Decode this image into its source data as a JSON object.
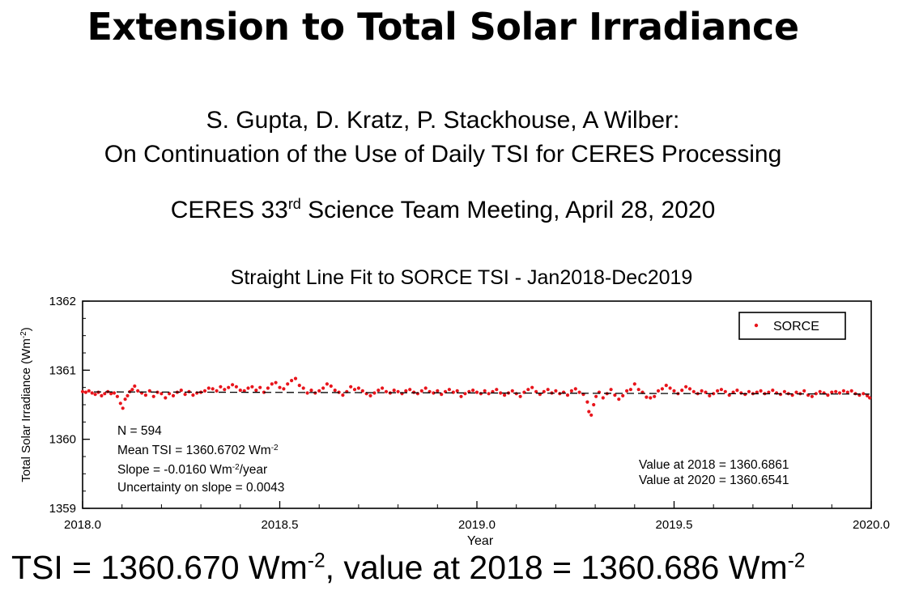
{
  "slide": {
    "title": "Extension to Total Solar Irradiance",
    "authors": "S. Gupta, D. Kratz, P. Stackhouse, A Wilber:",
    "talk_title": "On Continuation of the Use of Daily TSI for CERES Processing",
    "meeting_pre": "CERES 33",
    "meeting_sup": "rd",
    "meeting_post": " Science Team Meeting, April 28, 2020",
    "bottom_pre": "TSI = 1360.670 Wm",
    "bottom_sup1": "-2",
    "bottom_mid": ", value at 2018 = 1360.686 Wm",
    "bottom_sup2": "-2"
  },
  "chart_data": {
    "type": "scatter",
    "title": "Straight Line Fit to SORCE TSI - Jan2018-Dec2019",
    "xlabel": "Year",
    "ylabel": "Total Solar Irradiance (Wm-2)",
    "xlim": [
      2018.0,
      2020.0
    ],
    "ylim": [
      1359,
      1362
    ],
    "x_ticks": [
      "2018.0",
      "2018.5",
      "2019.0",
      "2019.5",
      "2020.0"
    ],
    "y_ticks": [
      "1359",
      "1360",
      "1361",
      "1362"
    ],
    "legend": {
      "label": "SORCE",
      "position": "top-right"
    },
    "colors": {
      "points": "#e8141b",
      "fit": "#000000"
    },
    "fit": {
      "style": "dashed",
      "intercept_2018": 1360.6861,
      "value_2020": 1360.6541
    },
    "stats": {
      "n": "N = 594",
      "mean_pre": "Mean TSI = 1360.6702 Wm",
      "mean_sup": "-2",
      "slope_pre": "Slope = -0.0160 Wm",
      "slope_sup": "-2",
      "slope_post": "/year",
      "uncertainty": "Uncertainty on slope = 0.0043",
      "v2018": "Value at 2018 = 1360.6861",
      "v2020": "Value at 2020 = 1360.6541"
    },
    "series": [
      {
        "name": "SORCE",
        "points": [
          [
            2018.0,
            1360.69
          ],
          [
            2018.008,
            1360.68
          ],
          [
            2018.016,
            1360.7
          ],
          [
            2018.024,
            1360.67
          ],
          [
            2018.032,
            1360.65
          ],
          [
            2018.04,
            1360.68
          ],
          [
            2018.048,
            1360.63
          ],
          [
            2018.056,
            1360.66
          ],
          [
            2018.064,
            1360.69
          ],
          [
            2018.072,
            1360.66
          ],
          [
            2018.08,
            1360.67
          ],
          [
            2018.088,
            1360.62
          ],
          [
            2018.096,
            1360.52
          ],
          [
            2018.102,
            1360.45
          ],
          [
            2018.108,
            1360.58
          ],
          [
            2018.114,
            1360.63
          ],
          [
            2018.12,
            1360.69
          ],
          [
            2018.126,
            1360.72
          ],
          [
            2018.132,
            1360.77
          ],
          [
            2018.14,
            1360.7
          ],
          [
            2018.15,
            1360.67
          ],
          [
            2018.16,
            1360.64
          ],
          [
            2018.17,
            1360.7
          ],
          [
            2018.18,
            1360.62
          ],
          [
            2018.19,
            1360.68
          ],
          [
            2018.2,
            1360.66
          ],
          [
            2018.21,
            1360.6
          ],
          [
            2018.22,
            1360.66
          ],
          [
            2018.23,
            1360.63
          ],
          [
            2018.24,
            1360.68
          ],
          [
            2018.25,
            1360.71
          ],
          [
            2018.26,
            1360.65
          ],
          [
            2018.27,
            1360.69
          ],
          [
            2018.28,
            1360.64
          ],
          [
            2018.29,
            1360.67
          ],
          [
            2018.3,
            1360.68
          ],
          [
            2018.31,
            1360.7
          ],
          [
            2018.32,
            1360.74
          ],
          [
            2018.33,
            1360.73
          ],
          [
            2018.34,
            1360.7
          ],
          [
            2018.35,
            1360.76
          ],
          [
            2018.36,
            1360.72
          ],
          [
            2018.37,
            1360.75
          ],
          [
            2018.38,
            1360.79
          ],
          [
            2018.39,
            1360.76
          ],
          [
            2018.4,
            1360.71
          ],
          [
            2018.41,
            1360.7
          ],
          [
            2018.42,
            1360.74
          ],
          [
            2018.43,
            1360.76
          ],
          [
            2018.44,
            1360.71
          ],
          [
            2018.45,
            1360.75
          ],
          [
            2018.46,
            1360.68
          ],
          [
            2018.47,
            1360.74
          ],
          [
            2018.48,
            1360.8
          ],
          [
            2018.49,
            1360.82
          ],
          [
            2018.5,
            1360.75
          ],
          [
            2018.51,
            1360.73
          ],
          [
            2018.52,
            1360.8
          ],
          [
            2018.53,
            1360.85
          ],
          [
            2018.54,
            1360.88
          ],
          [
            2018.55,
            1360.78
          ],
          [
            2018.56,
            1360.74
          ],
          [
            2018.57,
            1360.67
          ],
          [
            2018.58,
            1360.71
          ],
          [
            2018.59,
            1360.67
          ],
          [
            2018.6,
            1360.7
          ],
          [
            2018.61,
            1360.74
          ],
          [
            2018.62,
            1360.8
          ],
          [
            2018.63,
            1360.77
          ],
          [
            2018.64,
            1360.71
          ],
          [
            2018.65,
            1360.68
          ],
          [
            2018.66,
            1360.64
          ],
          [
            2018.67,
            1360.69
          ],
          [
            2018.68,
            1360.76
          ],
          [
            2018.69,
            1360.72
          ],
          [
            2018.7,
            1360.74
          ],
          [
            2018.71,
            1360.7
          ],
          [
            2018.72,
            1360.66
          ],
          [
            2018.73,
            1360.63
          ],
          [
            2018.74,
            1360.67
          ],
          [
            2018.75,
            1360.71
          ],
          [
            2018.76,
            1360.74
          ],
          [
            2018.77,
            1360.69
          ],
          [
            2018.78,
            1360.67
          ],
          [
            2018.79,
            1360.71
          ],
          [
            2018.8,
            1360.69
          ],
          [
            2018.81,
            1360.66
          ],
          [
            2018.82,
            1360.7
          ],
          [
            2018.83,
            1360.72
          ],
          [
            2018.84,
            1360.68
          ],
          [
            2018.85,
            1360.66
          ],
          [
            2018.86,
            1360.7
          ],
          [
            2018.87,
            1360.74
          ],
          [
            2018.88,
            1360.69
          ],
          [
            2018.89,
            1360.67
          ],
          [
            2018.9,
            1360.7
          ],
          [
            2018.91,
            1360.65
          ],
          [
            2018.92,
            1360.69
          ],
          [
            2018.93,
            1360.72
          ],
          [
            2018.94,
            1360.68
          ],
          [
            2018.95,
            1360.7
          ],
          [
            2018.96,
            1360.62
          ],
          [
            2018.97,
            1360.66
          ],
          [
            2018.98,
            1360.69
          ],
          [
            2018.99,
            1360.71
          ],
          [
            2019.0,
            1360.68
          ],
          [
            2019.01,
            1360.66
          ],
          [
            2019.02,
            1360.7
          ],
          [
            2019.03,
            1360.66
          ],
          [
            2019.04,
            1360.69
          ],
          [
            2019.05,
            1360.72
          ],
          [
            2019.06,
            1360.67
          ],
          [
            2019.07,
            1360.64
          ],
          [
            2019.08,
            1360.67
          ],
          [
            2019.09,
            1360.7
          ],
          [
            2019.1,
            1360.66
          ],
          [
            2019.11,
            1360.62
          ],
          [
            2019.12,
            1360.68
          ],
          [
            2019.13,
            1360.72
          ],
          [
            2019.14,
            1360.75
          ],
          [
            2019.15,
            1360.69
          ],
          [
            2019.16,
            1360.65
          ],
          [
            2019.17,
            1360.69
          ],
          [
            2019.18,
            1360.72
          ],
          [
            2019.19,
            1360.67
          ],
          [
            2019.2,
            1360.7
          ],
          [
            2019.21,
            1360.66
          ],
          [
            2019.22,
            1360.68
          ],
          [
            2019.23,
            1360.64
          ],
          [
            2019.24,
            1360.7
          ],
          [
            2019.25,
            1360.73
          ],
          [
            2019.26,
            1360.68
          ],
          [
            2019.27,
            1360.65
          ],
          [
            2019.28,
            1360.54
          ],
          [
            2019.284,
            1360.4
          ],
          [
            2019.29,
            1360.35
          ],
          [
            2019.296,
            1360.5
          ],
          [
            2019.302,
            1360.62
          ],
          [
            2019.31,
            1360.68
          ],
          [
            2019.32,
            1360.6
          ],
          [
            2019.33,
            1360.66
          ],
          [
            2019.34,
            1360.72
          ],
          [
            2019.35,
            1360.64
          ],
          [
            2019.36,
            1360.58
          ],
          [
            2019.37,
            1360.63
          ],
          [
            2019.38,
            1360.7
          ],
          [
            2019.39,
            1360.72
          ],
          [
            2019.4,
            1360.8
          ],
          [
            2019.41,
            1360.72
          ],
          [
            2019.42,
            1360.68
          ],
          [
            2019.43,
            1360.61
          ],
          [
            2019.44,
            1360.6
          ],
          [
            2019.45,
            1360.62
          ],
          [
            2019.46,
            1360.7
          ],
          [
            2019.47,
            1360.73
          ],
          [
            2019.48,
            1360.78
          ],
          [
            2019.49,
            1360.74
          ],
          [
            2019.5,
            1360.7
          ],
          [
            2019.51,
            1360.66
          ],
          [
            2019.52,
            1360.71
          ],
          [
            2019.53,
            1360.76
          ],
          [
            2019.54,
            1360.73
          ],
          [
            2019.55,
            1360.69
          ],
          [
            2019.56,
            1360.66
          ],
          [
            2019.57,
            1360.7
          ],
          [
            2019.58,
            1360.68
          ],
          [
            2019.59,
            1360.63
          ],
          [
            2019.6,
            1360.66
          ],
          [
            2019.61,
            1360.7
          ],
          [
            2019.62,
            1360.72
          ],
          [
            2019.63,
            1360.69
          ],
          [
            2019.64,
            1360.64
          ],
          [
            2019.65,
            1360.68
          ],
          [
            2019.66,
            1360.71
          ],
          [
            2019.67,
            1360.67
          ],
          [
            2019.68,
            1360.65
          ],
          [
            2019.69,
            1360.69
          ],
          [
            2019.7,
            1360.66
          ],
          [
            2019.71,
            1360.68
          ],
          [
            2019.72,
            1360.7
          ],
          [
            2019.73,
            1360.66
          ],
          [
            2019.74,
            1360.68
          ],
          [
            2019.75,
            1360.71
          ],
          [
            2019.76,
            1360.67
          ],
          [
            2019.77,
            1360.65
          ],
          [
            2019.78,
            1360.69
          ],
          [
            2019.79,
            1360.66
          ],
          [
            2019.8,
            1360.64
          ],
          [
            2019.81,
            1360.68
          ],
          [
            2019.82,
            1360.66
          ],
          [
            2019.83,
            1360.7
          ],
          [
            2019.84,
            1360.64
          ],
          [
            2019.85,
            1360.62
          ],
          [
            2019.86,
            1360.66
          ],
          [
            2019.87,
            1360.69
          ],
          [
            2019.88,
            1360.67
          ],
          [
            2019.89,
            1360.64
          ],
          [
            2019.9,
            1360.68
          ],
          [
            2019.91,
            1360.69
          ],
          [
            2019.92,
            1360.67
          ],
          [
            2019.93,
            1360.7
          ],
          [
            2019.94,
            1360.68
          ],
          [
            2019.95,
            1360.7
          ],
          [
            2019.96,
            1360.66
          ],
          [
            2019.97,
            1360.64
          ],
          [
            2019.98,
            1360.66
          ],
          [
            2019.99,
            1360.63
          ],
          [
            2019.996,
            1360.6
          ]
        ]
      }
    ]
  }
}
